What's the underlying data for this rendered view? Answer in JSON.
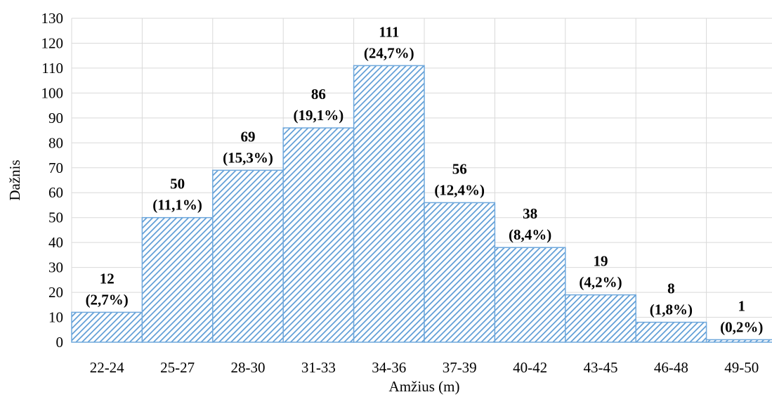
{
  "chart_data": {
    "type": "bar",
    "title": "",
    "xlabel": "Amžius (m)",
    "ylabel": "Dažnis",
    "ylim": [
      0,
      130
    ],
    "y_ticks": [
      0,
      10,
      20,
      30,
      40,
      50,
      60,
      70,
      80,
      90,
      100,
      110,
      120,
      130
    ],
    "grid": true,
    "legend": "none",
    "categories": [
      "22-24",
      "25-27",
      "28-30",
      "31-33",
      "34-36",
      "37-39",
      "40-42",
      "43-45",
      "46-48",
      "49-50"
    ],
    "values": [
      12,
      50,
      69,
      86,
      111,
      56,
      38,
      19,
      8,
      1
    ],
    "percent_labels": [
      "(2,7%)",
      "(11,1%)",
      "(15,3%)",
      "(19,1%)",
      "(24,7%)",
      "(12,4%)",
      "(8,4%)",
      "(4,2%)",
      "(1,8%)",
      "(0,2%)"
    ],
    "colors": {
      "bar_stroke": "#6fa8dc",
      "bar_hatch": "#5b9bd5",
      "bar_background": "#ffffff",
      "grid": "#d9d9d9"
    }
  }
}
